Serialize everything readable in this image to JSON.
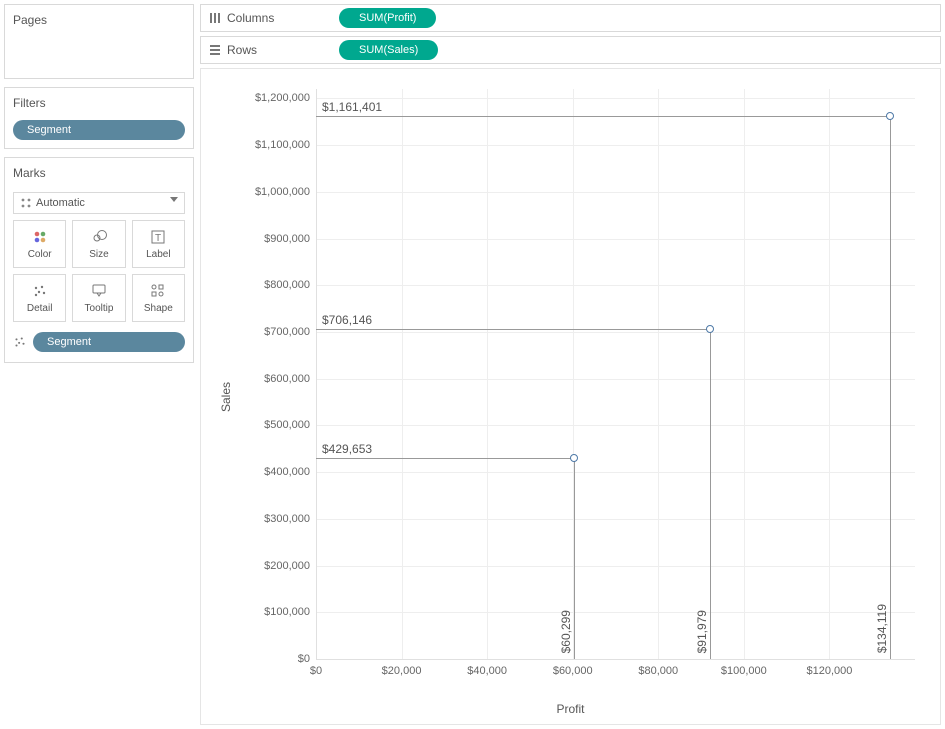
{
  "sidebar": {
    "pages": {
      "title": "Pages"
    },
    "filters": {
      "title": "Filters",
      "pill_label": "Segment"
    },
    "marks": {
      "title": "Marks",
      "mark_type": "Automatic",
      "buttons": [
        {
          "key": "color",
          "label": "Color"
        },
        {
          "key": "size",
          "label": "Size"
        },
        {
          "key": "label",
          "label": "Label"
        },
        {
          "key": "detail",
          "label": "Detail"
        },
        {
          "key": "tooltip",
          "label": "Tooltip"
        },
        {
          "key": "shape",
          "label": "Shape"
        }
      ],
      "shape_card_pill": "Segment"
    }
  },
  "shelves": {
    "columns": {
      "label": "Columns",
      "pill": "SUM(Profit)"
    },
    "rows": {
      "label": "Rows",
      "pill": "SUM(Sales)"
    }
  },
  "chart": {
    "type": "scatter",
    "x_label": "Profit",
    "y_label": "Sales",
    "xlim": [
      0,
      140000
    ],
    "ylim": [
      0,
      1220000
    ],
    "x_ticks": [
      {
        "v": 0,
        "label": "$0"
      },
      {
        "v": 20000,
        "label": "$20,000"
      },
      {
        "v": 40000,
        "label": "$40,000"
      },
      {
        "v": 60000,
        "label": "$60,000"
      },
      {
        "v": 80000,
        "label": "$80,000"
      },
      {
        "v": 100000,
        "label": "$100,000"
      },
      {
        "v": 120000,
        "label": "$120,000"
      }
    ],
    "y_ticks": [
      {
        "v": 0,
        "label": "$0"
      },
      {
        "v": 100000,
        "label": "$100,000"
      },
      {
        "v": 200000,
        "label": "$200,000"
      },
      {
        "v": 300000,
        "label": "$300,000"
      },
      {
        "v": 400000,
        "label": "$400,000"
      },
      {
        "v": 500000,
        "label": "$500,000"
      },
      {
        "v": 600000,
        "label": "$600,000"
      },
      {
        "v": 700000,
        "label": "$700,000"
      },
      {
        "v": 800000,
        "label": "$800,000"
      },
      {
        "v": 900000,
        "label": "$900,000"
      },
      {
        "v": 1000000,
        "label": "$1,000,000"
      },
      {
        "v": 1100000,
        "label": "$1,100,000"
      },
      {
        "v": 1200000,
        "label": "$1,200,000"
      }
    ],
    "points": [
      {
        "x": 60299,
        "y": 429653,
        "x_label": "$60,299",
        "y_label": "$429,653"
      },
      {
        "x": 91979,
        "y": 706146,
        "x_label": "$91,979",
        "y_label": "$706,146"
      },
      {
        "x": 134119,
        "y": 1161401,
        "x_label": "$134,119",
        "y_label": "$1,161,401"
      }
    ],
    "grid_color": "#eeeeee",
    "marker_border_color": "#4e79a7",
    "marker_fill_color": "#ffffff",
    "dropline_color": "#999999",
    "background_color": "#ffffff"
  },
  "colors": {
    "pill_blue": "#5b879e",
    "pill_green": "#00a88f",
    "border": "#d9d9d9"
  }
}
